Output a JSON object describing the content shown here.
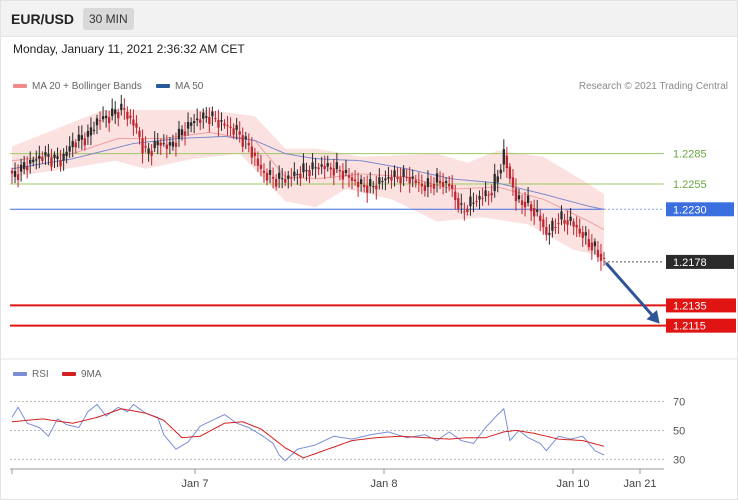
{
  "header": {
    "symbol": "EUR/USD",
    "timeframe": "30 MIN",
    "datetime": "Monday, January 11, 2021 2:36:32 AM CET",
    "credit": "Research © 2021 Trading Central"
  },
  "legend": {
    "items": [
      {
        "label": "MA 20 + Bollinger Bands",
        "color": "#f08c8c"
      },
      {
        "label": "MA 50",
        "color": "#2a5a9a"
      }
    ]
  },
  "rsi_legend": {
    "items": [
      {
        "label": "RSI",
        "color": "#7a8fd6"
      },
      {
        "label": "9MA",
        "color": "#d42020"
      }
    ]
  },
  "colors": {
    "bull": "#2a2a2a",
    "bear": "#c0262f",
    "band_fill": "#fbd7d7",
    "ma20": "#f0a0a0",
    "ma50": "#7d89c9",
    "resistance_green": "#9ccc65",
    "pivot_blue": "#3b6fe0",
    "support_red": "#e11414",
    "current_dark": "#2b2b2b",
    "arrow": "#2f5597",
    "rsi_line": "#7a8fd6",
    "rsi_ma": "#d42020"
  },
  "chart_data": [
    {
      "type": "candlestick",
      "y_range": [
        1.2087,
        1.2338
      ],
      "x_labels": [
        "Jan 7",
        "Jan 8",
        "Jan 10",
        "Jan 21"
      ],
      "levels": [
        {
          "value": 1.2285,
          "label": "1.2285",
          "style": "green-thin"
        },
        {
          "value": 1.2255,
          "label": "1.2255",
          "style": "green-thin"
        },
        {
          "value": 1.223,
          "label": "1.2230",
          "style": "blue-tag"
        },
        {
          "value": 1.2178,
          "label": "1.2178",
          "style": "current-dotted"
        },
        {
          "value": 1.2135,
          "label": "1.2135",
          "style": "red-bold"
        },
        {
          "value": 1.2115,
          "label": "1.2115",
          "style": "red-bold"
        }
      ],
      "anchors": [
        [
          0,
          1.2262
        ],
        [
          5,
          1.2275
        ],
        [
          10,
          1.2283
        ],
        [
          16,
          1.2278
        ],
        [
          20,
          1.2296
        ],
        [
          25,
          1.2303
        ],
        [
          28,
          1.2318
        ],
        [
          32,
          1.2322
        ],
        [
          36,
          1.233
        ],
        [
          40,
          1.2315
        ],
        [
          44,
          1.2285
        ],
        [
          48,
          1.2296
        ],
        [
          52,
          1.2292
        ],
        [
          56,
          1.2307
        ],
        [
          60,
          1.2318
        ],
        [
          65,
          1.2322
        ],
        [
          70,
          1.2313
        ],
        [
          74,
          1.2307
        ],
        [
          78,
          1.2292
        ],
        [
          82,
          1.2268
        ],
        [
          86,
          1.226
        ],
        [
          90,
          1.226
        ],
        [
          96,
          1.2268
        ],
        [
          102,
          1.2273
        ],
        [
          108,
          1.2268
        ],
        [
          114,
          1.2255
        ],
        [
          118,
          1.2252
        ],
        [
          124,
          1.2262
        ],
        [
          130,
          1.2262
        ],
        [
          136,
          1.2252
        ],
        [
          140,
          1.2258
        ],
        [
          144,
          1.2254
        ],
        [
          148,
          1.2228
        ],
        [
          152,
          1.2238
        ],
        [
          158,
          1.2248
        ],
        [
          162,
          1.2283
        ],
        [
          166,
          1.224
        ],
        [
          170,
          1.2235
        ],
        [
          174,
          1.222
        ],
        [
          176,
          1.2205
        ],
        [
          180,
          1.222
        ],
        [
          184,
          1.2218
        ],
        [
          188,
          1.2204
        ],
        [
          192,
          1.219
        ],
        [
          195,
          1.2178
        ]
      ],
      "bands": {
        "upper": [
          [
            0,
            1.2292
          ],
          [
            30,
            1.2328
          ],
          [
            48,
            1.2328
          ],
          [
            65,
            1.2328
          ],
          [
            80,
            1.2322
          ],
          [
            90,
            1.229
          ],
          [
            100,
            1.229
          ],
          [
            115,
            1.2282
          ],
          [
            140,
            1.2285
          ],
          [
            150,
            1.2276
          ],
          [
            160,
            1.2288
          ],
          [
            175,
            1.2282
          ],
          [
            190,
            1.2255
          ],
          [
            195,
            1.2245
          ]
        ],
        "lower": [
          [
            0,
            1.2262
          ],
          [
            18,
            1.227
          ],
          [
            34,
            1.2278
          ],
          [
            44,
            1.227
          ],
          [
            60,
            1.228
          ],
          [
            75,
            1.2285
          ],
          [
            90,
            1.2238
          ],
          [
            100,
            1.2232
          ],
          [
            110,
            1.225
          ],
          [
            125,
            1.224
          ],
          [
            140,
            1.2218
          ],
          [
            155,
            1.2222
          ],
          [
            170,
            1.2215
          ],
          [
            185,
            1.219
          ],
          [
            195,
            1.2183
          ]
        ],
        "ma20": [
          [
            0,
            1.2278
          ],
          [
            20,
            1.2285
          ],
          [
            35,
            1.23
          ],
          [
            50,
            1.23
          ],
          [
            65,
            1.2306
          ],
          [
            80,
            1.2298
          ],
          [
            90,
            1.2262
          ],
          [
            100,
            1.226
          ],
          [
            115,
            1.2265
          ],
          [
            130,
            1.2262
          ],
          [
            145,
            1.225
          ],
          [
            160,
            1.2252
          ],
          [
            175,
            1.224
          ],
          [
            190,
            1.2218
          ],
          [
            195,
            1.221
          ]
        ]
      },
      "ma50": [
        [
          0,
          1.227
        ],
        [
          20,
          1.228
        ],
        [
          40,
          1.2295
        ],
        [
          55,
          1.23
        ],
        [
          70,
          1.2302
        ],
        [
          80,
          1.2298
        ],
        [
          90,
          1.2285
        ],
        [
          100,
          1.228
        ],
        [
          115,
          1.2278
        ],
        [
          130,
          1.227
        ],
        [
          145,
          1.226
        ],
        [
          160,
          1.2256
        ],
        [
          175,
          1.2245
        ],
        [
          190,
          1.2233
        ],
        [
          195,
          1.223
        ]
      ],
      "projection_from": 1.2178,
      "projection_to": 1.2115
    },
    {
      "type": "line",
      "y_range": [
        24,
        78
      ],
      "y_ticks": [
        70,
        50,
        30
      ],
      "rsi": [
        [
          0,
          59
        ],
        [
          2,
          66
        ],
        [
          5,
          55
        ],
        [
          9,
          52
        ],
        [
          12,
          46
        ],
        [
          15,
          58
        ],
        [
          18,
          54
        ],
        [
          22,
          52
        ],
        [
          25,
          63
        ],
        [
          28,
          68
        ],
        [
          31,
          60
        ],
        [
          35,
          66
        ],
        [
          38,
          63
        ],
        [
          40,
          68
        ],
        [
          44,
          62
        ],
        [
          48,
          59
        ],
        [
          50,
          47
        ],
        [
          54,
          37
        ],
        [
          58,
          42
        ],
        [
          62,
          53
        ],
        [
          66,
          57
        ],
        [
          70,
          61
        ],
        [
          74,
          55
        ],
        [
          78,
          52
        ],
        [
          82,
          47
        ],
        [
          86,
          41
        ],
        [
          88,
          33
        ],
        [
          90,
          29
        ],
        [
          94,
          37
        ],
        [
          100,
          40
        ],
        [
          106,
          46
        ],
        [
          112,
          44
        ],
        [
          118,
          47
        ],
        [
          124,
          49
        ],
        [
          130,
          45
        ],
        [
          136,
          47
        ],
        [
          140,
          43
        ],
        [
          144,
          49
        ],
        [
          148,
          43
        ],
        [
          152,
          41
        ],
        [
          156,
          52
        ],
        [
          160,
          61
        ],
        [
          162,
          65
        ],
        [
          164,
          43
        ],
        [
          167,
          50
        ],
        [
          170,
          45
        ],
        [
          174,
          41
        ],
        [
          176,
          36
        ],
        [
          180,
          46
        ],
        [
          184,
          44
        ],
        [
          188,
          46
        ],
        [
          192,
          36
        ],
        [
          195,
          33
        ]
      ],
      "ma9": [
        [
          0,
          56
        ],
        [
          10,
          58
        ],
        [
          20,
          55
        ],
        [
          28,
          59
        ],
        [
          36,
          65
        ],
        [
          44,
          62
        ],
        [
          50,
          57
        ],
        [
          56,
          45
        ],
        [
          62,
          46
        ],
        [
          70,
          55
        ],
        [
          76,
          56
        ],
        [
          82,
          51
        ],
        [
          90,
          38
        ],
        [
          96,
          31
        ],
        [
          104,
          37
        ],
        [
          112,
          43
        ],
        [
          120,
          45
        ],
        [
          128,
          46
        ],
        [
          136,
          45
        ],
        [
          144,
          44
        ],
        [
          150,
          45
        ],
        [
          156,
          45
        ],
        [
          162,
          49
        ],
        [
          166,
          50
        ],
        [
          172,
          48
        ],
        [
          180,
          44
        ],
        [
          188,
          43
        ],
        [
          195,
          39
        ]
      ]
    }
  ]
}
